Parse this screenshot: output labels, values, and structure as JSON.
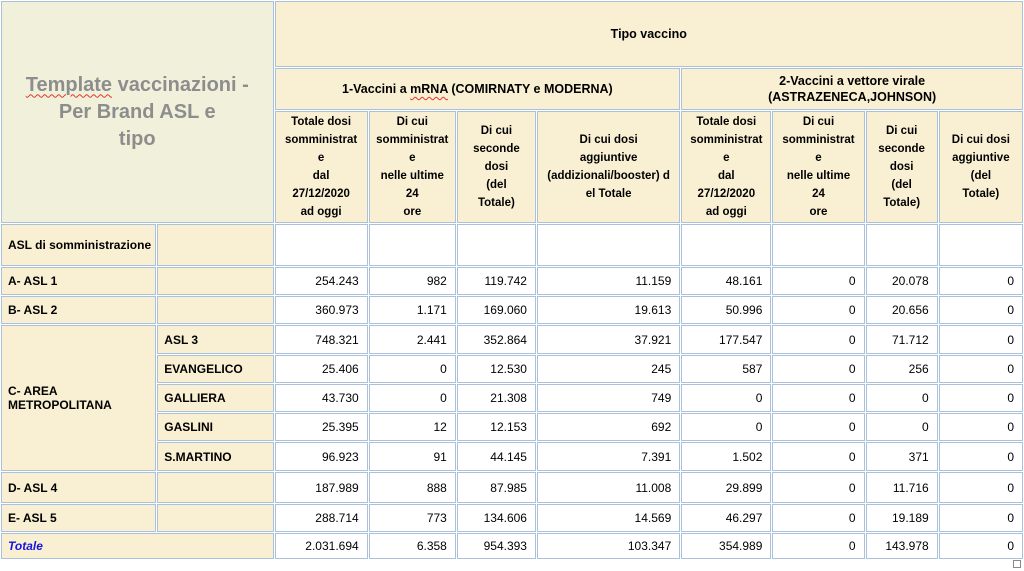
{
  "colors": {
    "title_bg": "#f1f1db",
    "header_bg": "#f9f0d3",
    "grid_border": "#a9c1db",
    "title_text": "#8d8d8d",
    "totale_text": "#1515e0",
    "misspell_underline": "#e0372c",
    "data_bg": "#ffffff"
  },
  "title": {
    "misspelled_word": "Template",
    "rest": " vaccinazioni -\nPer Brand ASL e\ntipo"
  },
  "header": {
    "tipo_vaccino": "Tipo vaccino",
    "group1": {
      "prefix": "1-Vaccini a ",
      "misspelled_word": "mRNA",
      "suffix": " (COMIRNATY e MODERNA)"
    },
    "group2": "2-Vaccini a vettore virale\n(ASTRAZENECA,JOHNSON)",
    "columns": [
      "Totale dosi\nsomministrat\ne\ndal\n27/12/2020\nad oggi",
      "Di cui\nsomministrat\ne\nnelle ultime\n24\nore",
      "Di cui\nseconde\ndosi\n(del\nTotale)",
      "Di cui dosi\naggiuntive\n(addizionali/booster) d\nel Totale",
      "Totale dosi\nsomministrat\ne\ndal\n27/12/2020\nad oggi",
      "Di cui\nsomministrat\ne\nnelle ultime\n24\nore",
      "Di cui\nseconde\ndosi\n(del\nTotale)",
      "Di cui dosi\naggiuntive\n(del\nTotale)"
    ]
  },
  "rows": [
    {
      "name": "asl-somministrazione",
      "label": "ASL di somministrazione",
      "sublabel": "",
      "height": 42,
      "values": [
        "",
        "",
        "",
        "",
        "",
        "",
        "",
        ""
      ]
    },
    {
      "name": "asl-1",
      "label": "A- ASL 1",
      "sublabel": "",
      "height": 28,
      "values": [
        "254.243",
        "982",
        "119.742",
        "11.159",
        "48.161",
        "0",
        "20.078",
        "0"
      ]
    },
    {
      "name": "asl-2",
      "label": "B- ASL 2",
      "sublabel": "",
      "height": 28,
      "values": [
        "360.973",
        "1.171",
        "169.060",
        "19.613",
        "50.996",
        "0",
        "20.656",
        "0"
      ]
    },
    {
      "name": "area-metropolitana-asl-3",
      "label": "C- AREA METROPOLITANA",
      "label_rowspan": 5,
      "sublabel": "ASL 3",
      "height": 29,
      "values": [
        "748.321",
        "2.441",
        "352.864",
        "37.921",
        "177.547",
        "0",
        "71.712",
        "0"
      ]
    },
    {
      "name": "evangelico",
      "sublabel": "EVANGELICO",
      "height": 28,
      "values": [
        "25.406",
        "0",
        "12.530",
        "245",
        "587",
        "0",
        "256",
        "0"
      ]
    },
    {
      "name": "galliera",
      "sublabel": "GALLIERA",
      "height": 28,
      "values": [
        "43.730",
        "0",
        "21.308",
        "749",
        "0",
        "0",
        "0",
        "0"
      ]
    },
    {
      "name": "gaslini",
      "sublabel": "GASLINI",
      "height": 28,
      "values": [
        "25.395",
        "12",
        "12.153",
        "692",
        "0",
        "0",
        "0",
        "0"
      ]
    },
    {
      "name": "s-martino",
      "sublabel": "S.MARTINO",
      "height": 29,
      "values": [
        "96.923",
        "91",
        "44.145",
        "7.391",
        "1.502",
        "0",
        "371",
        "0"
      ]
    },
    {
      "name": "asl-4",
      "label": "D- ASL 4",
      "sublabel": "",
      "height": 31,
      "values": [
        "187.989",
        "888",
        "87.985",
        "11.008",
        "29.899",
        "0",
        "11.716",
        "0"
      ]
    },
    {
      "name": "asl-5",
      "label": "E- ASL 5",
      "sublabel": "",
      "height": 28,
      "values": [
        "288.714",
        "773",
        "134.606",
        "14.569",
        "46.297",
        "0",
        "19.189",
        "0"
      ]
    },
    {
      "name": "totale",
      "label": "Totale",
      "label_colspan": 2,
      "is_total": true,
      "height": 26,
      "values": [
        "2.031.694",
        "6.358",
        "954.393",
        "103.347",
        "354.989",
        "0",
        "143.978",
        "0"
      ]
    }
  ]
}
